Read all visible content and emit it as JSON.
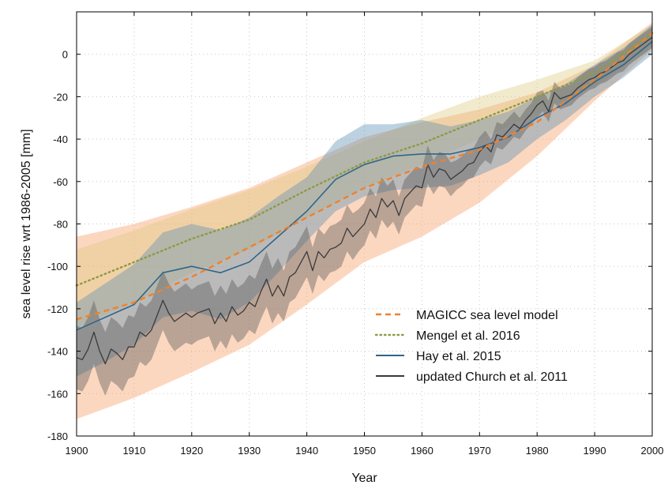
{
  "chart_data": {
    "type": "line",
    "title": "",
    "xlabel": "Year",
    "ylabel": "sea level rise wrt 1986-2005 [mm]",
    "xlim": [
      1900,
      2000
    ],
    "ylim": [
      -180,
      20
    ],
    "xticks": [
      1900,
      1910,
      1920,
      1930,
      1940,
      1950,
      1960,
      1970,
      1980,
      1990,
      2000
    ],
    "yticks": [
      -180,
      -160,
      -140,
      -120,
      -100,
      -80,
      -60,
      -40,
      -20,
      0
    ],
    "grid": true,
    "legend_position": "lower-right",
    "series": [
      {
        "name": "MAGICC sea level model",
        "color": "#f0812a",
        "style": "dashed",
        "x": [
          1900,
          1910,
          1920,
          1930,
          1940,
          1950,
          1960,
          1970,
          1980,
          1990,
          2000
        ],
        "y": [
          -125,
          -117,
          -105,
          -91,
          -77,
          -63,
          -53,
          -45,
          -32,
          -12,
          10
        ],
        "band_lower": [
          -172,
          -162,
          -150,
          -137,
          -118,
          -98,
          -86,
          -70,
          -48,
          -22,
          2
        ],
        "band_upper": [
          -86,
          -80,
          -72,
          -63,
          -51,
          -39,
          -32,
          -26,
          -18,
          -5,
          15
        ]
      },
      {
        "name": "Mengel et al. 2016",
        "color": "#8e9a45",
        "style": "dotted",
        "x": [
          1900,
          1910,
          1920,
          1930,
          1940,
          1950,
          1960,
          1970,
          1980,
          1990,
          2000
        ],
        "y": [
          -109,
          -98,
          -87,
          -78,
          -64,
          -51,
          -42,
          -31,
          -20,
          -9,
          10
        ],
        "band_lower": [
          -129,
          -117,
          -103,
          -92,
          -77,
          -63,
          -52,
          -40,
          -28,
          -15,
          3
        ],
        "band_upper": [
          -92,
          -83,
          -73,
          -64,
          -53,
          -41,
          -30,
          -20,
          -12,
          -3,
          14
        ]
      },
      {
        "name": "Hay et al. 2015",
        "color": "#2f6688",
        "style": "solid",
        "x": [
          1900,
          1905,
          1910,
          1915,
          1920,
          1925,
          1930,
          1935,
          1940,
          1945,
          1950,
          1955,
          1960,
          1965,
          1970,
          1975,
          1980,
          1985,
          1990,
          1995,
          2000
        ],
        "y": [
          -130,
          -124,
          -118,
          -103,
          -100,
          -103,
          -98,
          -86,
          -74,
          -59,
          -52,
          -48,
          -47,
          -47,
          -44,
          -39,
          -30,
          -23,
          -13,
          -5,
          6
        ],
        "band_lower": [
          -152,
          -145,
          -137,
          -124,
          -121,
          -125,
          -117,
          -103,
          -88,
          -74,
          -67,
          -64,
          -63,
          -62,
          -57,
          -51,
          -40,
          -31,
          -20,
          -11,
          0
        ],
        "band_upper": [
          -117,
          -108,
          -99,
          -84,
          -80,
          -83,
          -77,
          -67,
          -58,
          -41,
          -33,
          -33,
          -31,
          -34,
          -31,
          -27,
          -20,
          -14,
          -5,
          3,
          14
        ]
      },
      {
        "name": "updated Church et al. 2011",
        "color": "#3a3a3a",
        "style": "solid",
        "x": [
          1900,
          1901,
          1902,
          1903,
          1904,
          1905,
          1906,
          1907,
          1908,
          1909,
          1910,
          1911,
          1912,
          1913,
          1914,
          1915,
          1916,
          1917,
          1918,
          1919,
          1920,
          1921,
          1922,
          1923,
          1924,
          1925,
          1926,
          1927,
          1928,
          1929,
          1930,
          1931,
          1932,
          1933,
          1934,
          1935,
          1936,
          1937,
          1938,
          1939,
          1940,
          1941,
          1942,
          1943,
          1944,
          1945,
          1946,
          1947,
          1948,
          1949,
          1950,
          1951,
          1952,
          1953,
          1954,
          1955,
          1956,
          1957,
          1958,
          1959,
          1960,
          1961,
          1962,
          1963,
          1964,
          1965,
          1966,
          1967,
          1968,
          1969,
          1970,
          1971,
          1972,
          1973,
          1974,
          1975,
          1976,
          1977,
          1978,
          1979,
          1980,
          1981,
          1982,
          1983,
          1984,
          1985,
          1986,
          1987,
          1988,
          1989,
          1990,
          1991,
          1992,
          1993,
          1994,
          1995,
          1996,
          1997,
          1998,
          1999,
          2000
        ],
        "y": [
          -143,
          -144,
          -139,
          -131,
          -140,
          -146,
          -139,
          -141,
          -144,
          -138,
          -138,
          -131,
          -133,
          -130,
          -123,
          -116,
          -122,
          -126,
          -124,
          -122,
          -124,
          -122,
          -121,
          -120,
          -127,
          -122,
          -126,
          -119,
          -123,
          -121,
          -117,
          -119,
          -112,
          -106,
          -114,
          -109,
          -114,
          -105,
          -103,
          -98,
          -93,
          -102,
          -93,
          -96,
          -92,
          -91,
          -89,
          -82,
          -86,
          -83,
          -80,
          -73,
          -77,
          -68,
          -72,
          -69,
          -76,
          -68,
          -65,
          -62,
          -63,
          -52,
          -58,
          -54,
          -55,
          -59,
          -57,
          -55,
          -52,
          -51,
          -46,
          -43,
          -46,
          -38,
          -39,
          -36,
          -33,
          -35,
          -31,
          -28,
          -24,
          -22,
          -27,
          -18,
          -21,
          -20,
          -19,
          -16,
          -14,
          -12,
          -11,
          -9,
          -8,
          -6,
          -4,
          -3,
          0,
          2,
          4,
          6,
          8
        ],
        "band_lower": [
          -158,
          -159,
          -154,
          -146,
          -155,
          -161,
          -154,
          -156,
          -159,
          -153,
          -152,
          -145,
          -147,
          -144,
          -137,
          -130,
          -136,
          -140,
          -138,
          -136,
          -137,
          -135,
          -134,
          -133,
          -140,
          -135,
          -139,
          -132,
          -136,
          -134,
          -130,
          -132,
          -125,
          -119,
          -127,
          -122,
          -126,
          -117,
          -115,
          -110,
          -105,
          -113,
          -104,
          -107,
          -103,
          -102,
          -100,
          -93,
          -97,
          -93,
          -90,
          -83,
          -87,
          -78,
          -82,
          -79,
          -85,
          -77,
          -74,
          -71,
          -72,
          -61,
          -66,
          -62,
          -63,
          -67,
          -64,
          -62,
          -59,
          -58,
          -53,
          -50,
          -52,
          -44,
          -45,
          -42,
          -39,
          -40,
          -36,
          -33,
          -30,
          -27,
          -32,
          -23,
          -26,
          -25,
          -24,
          -21,
          -19,
          -17,
          -16,
          -14,
          -13,
          -11,
          -9,
          -8,
          -5,
          -3,
          -1,
          1,
          3
        ],
        "band_upper": [
          -128,
          -129,
          -124,
          -116,
          -125,
          -131,
          -124,
          -126,
          -129,
          -123,
          -124,
          -117,
          -119,
          -116,
          -109,
          -102,
          -108,
          -112,
          -110,
          -108,
          -111,
          -109,
          -108,
          -107,
          -114,
          -109,
          -113,
          -106,
          -110,
          -108,
          -104,
          -106,
          -99,
          -93,
          -101,
          -96,
          -102,
          -93,
          -91,
          -86,
          -81,
          -91,
          -82,
          -85,
          -81,
          -80,
          -78,
          -71,
          -75,
          -73,
          -70,
          -63,
          -67,
          -58,
          -62,
          -59,
          -67,
          -59,
          -56,
          -53,
          -54,
          -43,
          -50,
          -46,
          -47,
          -51,
          -50,
          -48,
          -45,
          -44,
          -39,
          -36,
          -40,
          -32,
          -33,
          -30,
          -27,
          -30,
          -26,
          -23,
          -18,
          -17,
          -22,
          -13,
          -16,
          -15,
          -14,
          -11,
          -9,
          -7,
          -6,
          -4,
          -3,
          -1,
          1,
          2,
          5,
          7,
          9,
          11,
          13
        ]
      }
    ]
  }
}
